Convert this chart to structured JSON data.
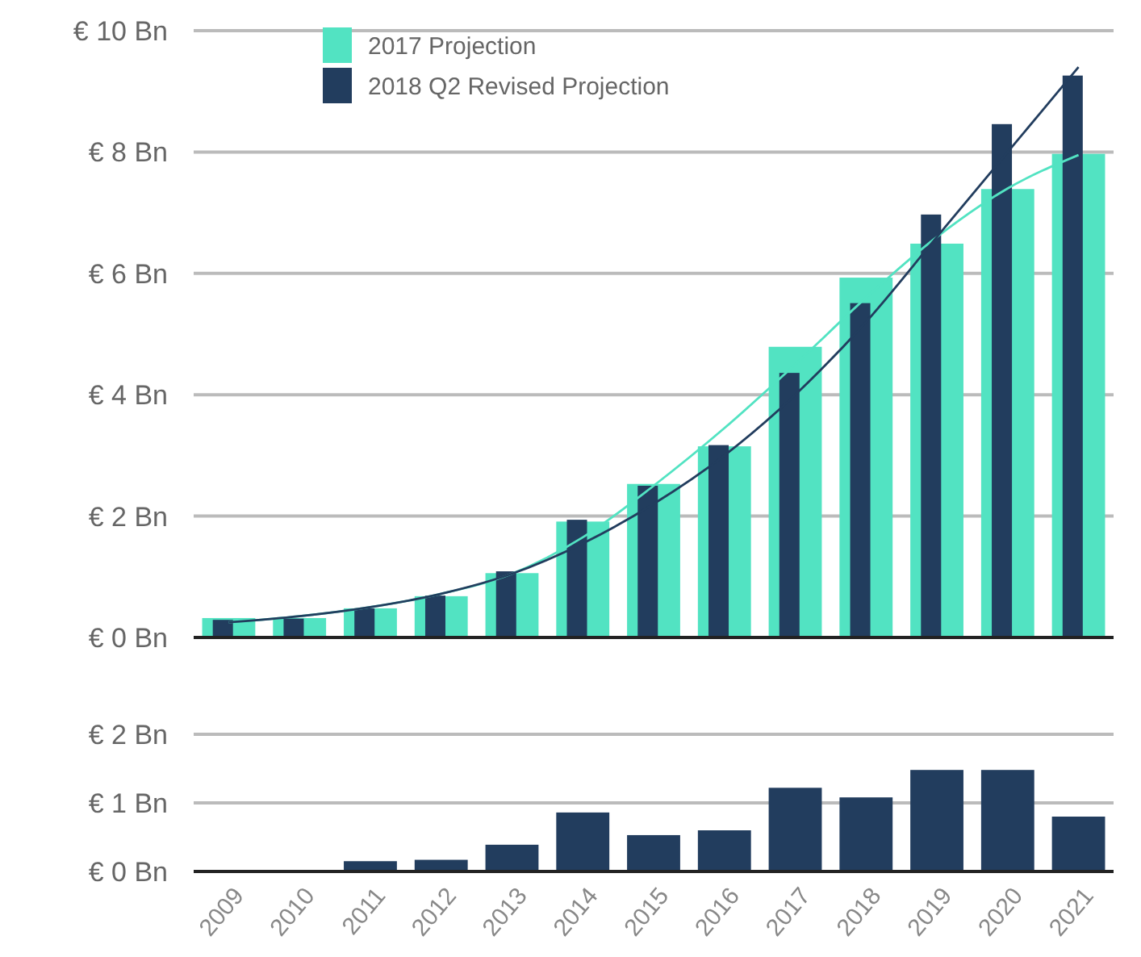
{
  "chart_data": [
    {
      "type": "bar",
      "categories": [
        "2009",
        "2010",
        "2011",
        "2012",
        "2013",
        "2014",
        "2015",
        "2016",
        "2017",
        "2018",
        "2019",
        "2020",
        "2021"
      ],
      "series": [
        {
          "name": "2017 Projection",
          "color": "#52e3c2",
          "values": [
            0.32,
            0.32,
            0.48,
            0.68,
            1.06,
            1.91,
            2.53,
            3.15,
            4.79,
            5.93,
            6.49,
            7.39,
            7.97
          ]
        },
        {
          "name": "2018 Q2 Revised Projection",
          "color": "#223d5e",
          "values": [
            0.29,
            0.31,
            0.48,
            0.69,
            1.09,
            1.94,
            2.5,
            3.17,
            4.36,
            5.51,
            6.97,
            8.46,
            9.26
          ]
        },
        {
          "type": "line",
          "color": "#52e3c2",
          "values": [
            0.25,
            0.35,
            0.5,
            0.72,
            1.05,
            1.65,
            2.5,
            3.45,
            4.5,
            5.6,
            6.6,
            7.4,
            7.95
          ]
        },
        {
          "type": "line",
          "color": "#223d5e",
          "values": [
            0.25,
            0.35,
            0.5,
            0.72,
            1.05,
            1.55,
            2.2,
            3.0,
            4.0,
            5.2,
            6.6,
            8.0,
            9.4
          ]
        }
      ],
      "ylim": [
        0,
        10
      ],
      "yticks": [
        {
          "value": 0,
          "label": "€ 0 Bn"
        },
        {
          "value": 2,
          "label": "€ 2 Bn"
        },
        {
          "value": 4,
          "label": "€ 4 Bn"
        },
        {
          "value": 6,
          "label": "€ 6 Bn"
        },
        {
          "value": 8,
          "label": "€ 8 Bn"
        },
        {
          "value": 10,
          "label": "€ 10 Bn"
        }
      ],
      "grid": "y",
      "legend": "top",
      "tick_labels": "y"
    },
    {
      "type": "bar",
      "categories": [
        "2009",
        "2010",
        "2011",
        "2012",
        "2013",
        "2014",
        "2015",
        "2016",
        "2017",
        "2018",
        "2019",
        "2020",
        "2021"
      ],
      "series": [
        {
          "color": "#223d5e",
          "values": [
            0,
            0,
            0.15,
            0.17,
            0.39,
            0.86,
            0.53,
            0.6,
            1.22,
            1.08,
            1.48,
            1.48,
            0.8
          ]
        }
      ],
      "ylim": [
        0,
        2
      ],
      "yticks": [
        {
          "value": 0,
          "label": "€ 0 Bn"
        },
        {
          "value": 1,
          "label": "€ 1 Bn"
        },
        {
          "value": 2,
          "label": "€ 2 Bn"
        }
      ],
      "grid": "y"
    }
  ]
}
